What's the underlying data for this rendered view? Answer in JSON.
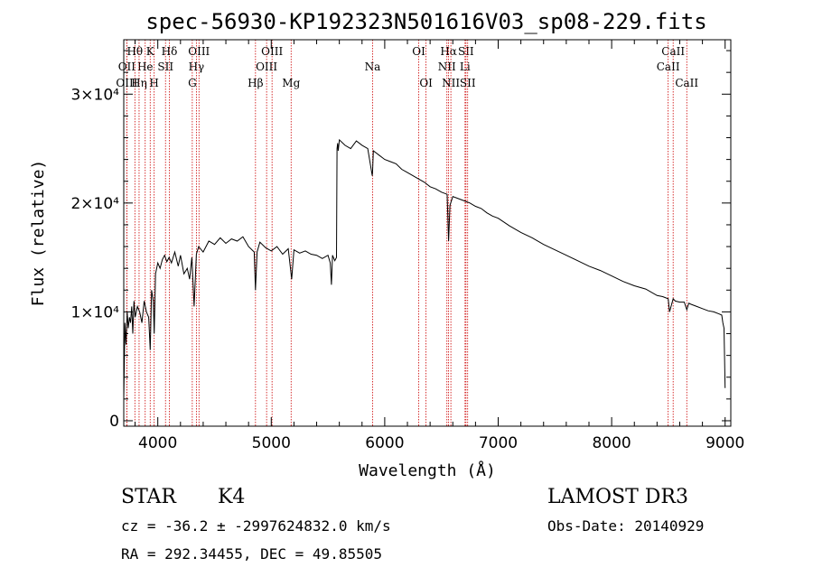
{
  "chart_data": {
    "type": "line",
    "title": "spec-56930-KP192323N501616V03_sp08-229.fits",
    "xlabel": "Wavelength (Å)",
    "ylabel": "Flux (relative)",
    "xlim": [
      3700,
      9050
    ],
    "ylim": [
      -500,
      35000
    ],
    "xticks": [
      {
        "value": 4000,
        "label": "4000"
      },
      {
        "value": 5000,
        "label": "5000"
      },
      {
        "value": 6000,
        "label": "6000"
      },
      {
        "value": 7000,
        "label": "7000"
      },
      {
        "value": 8000,
        "label": "8000"
      },
      {
        "value": 9000,
        "label": "9000"
      }
    ],
    "yticks": [
      {
        "value": 0,
        "label": "0"
      },
      {
        "value": 10000,
        "label": "1×10⁴"
      },
      {
        "value": 20000,
        "label": "2×10⁴"
      },
      {
        "value": 30000,
        "label": "3×10⁴"
      }
    ],
    "series": [
      {
        "name": "spectrum",
        "x": [
          3700,
          3710,
          3720,
          3730,
          3740,
          3750,
          3760,
          3770,
          3780,
          3790,
          3800,
          3820,
          3840,
          3860,
          3880,
          3900,
          3920,
          3933,
          3945,
          3960,
          3968,
          3980,
          4000,
          4020,
          4040,
          4060,
          4080,
          4100,
          4120,
          4150,
          4180,
          4200,
          4230,
          4260,
          4280,
          4300,
          4320,
          4340,
          4360,
          4400,
          4450,
          4500,
          4550,
          4600,
          4650,
          4700,
          4750,
          4800,
          4850,
          4861,
          4875,
          4900,
          4950,
          5000,
          5050,
          5100,
          5150,
          5180,
          5200,
          5250,
          5300,
          5350,
          5400,
          5450,
          5500,
          5520,
          5530,
          5540,
          5560,
          5575,
          5580,
          5585,
          5590,
          5600,
          5650,
          5700,
          5750,
          5800,
          5850,
          5890,
          5893,
          5900,
          5950,
          6000,
          6050,
          6100,
          6150,
          6200,
          6250,
          6300,
          6350,
          6400,
          6450,
          6500,
          6550,
          6563,
          6575,
          6600,
          6650,
          6700,
          6750,
          6800,
          6850,
          6900,
          6950,
          7000,
          7100,
          7200,
          7300,
          7400,
          7500,
          7600,
          7700,
          7800,
          7900,
          8000,
          8100,
          8200,
          8300,
          8400,
          8450,
          8498,
          8510,
          8542,
          8560,
          8600,
          8640,
          8662,
          8680,
          8700,
          8750,
          8800,
          8850,
          8900,
          8950,
          8970,
          8980,
          8990,
          9000
        ],
        "y": [
          2000,
          9000,
          7000,
          10000,
          8500,
          9500,
          9000,
          10500,
          8000,
          11000,
          9500,
          10500,
          10000,
          9000,
          11000,
          10000,
          9500,
          6500,
          12000,
          11000,
          8000,
          13500,
          14500,
          14000,
          14800,
          15200,
          14600,
          15000,
          14500,
          15500,
          14200,
          15200,
          13500,
          14000,
          13000,
          15000,
          10500,
          15300,
          16000,
          15500,
          16500,
          16200,
          16800,
          16300,
          16700,
          16500,
          16900,
          16000,
          15500,
          12000,
          15500,
          16400,
          15900,
          15600,
          16000,
          15300,
          15800,
          13000,
          15700,
          15400,
          15600,
          15300,
          15200,
          14900,
          15200,
          14500,
          12500,
          15200,
          14700,
          15000,
          25000,
          25500,
          24800,
          25800,
          25300,
          25000,
          25700,
          25300,
          25000,
          22500,
          23000,
          24800,
          24400,
          24000,
          23800,
          23600,
          23100,
          22800,
          22500,
          22200,
          21900,
          21500,
          21300,
          21000,
          20800,
          16500,
          19800,
          20600,
          20400,
          20200,
          20000,
          19700,
          19500,
          19100,
          18800,
          18600,
          17900,
          17300,
          16800,
          16200,
          15700,
          15200,
          14700,
          14200,
          13800,
          13300,
          12800,
          12400,
          12100,
          11500,
          11400,
          11200,
          10000,
          11200,
          11000,
          10900,
          10900,
          10200,
          10800,
          10700,
          10500,
          10300,
          10100,
          10000,
          9800,
          9700,
          9000,
          8500,
          3000
        ]
      }
    ],
    "lines": [
      {
        "label": "Hθ",
        "x": 3798,
        "row": 1
      },
      {
        "label": "OII",
        "x": 3727,
        "row": 2
      },
      {
        "label": "OIII",
        "x": 3727,
        "row": 3
      },
      {
        "label": "K",
        "x": 3933,
        "row": 1
      },
      {
        "label": "He",
        "x": 3889,
        "row": 2
      },
      {
        "label": "Hη",
        "x": 3835,
        "row": 3
      },
      {
        "label": "SII",
        "x": 4068,
        "row": 2
      },
      {
        "label": "H",
        "x": 3968,
        "row": 3
      },
      {
        "label": "Hδ",
        "x": 4102,
        "row": 1
      },
      {
        "label": "OIII",
        "x": 4363,
        "row": 1
      },
      {
        "label": "Hγ",
        "x": 4340,
        "row": 2
      },
      {
        "label": "G",
        "x": 4304,
        "row": 3
      },
      {
        "label": "OIII",
        "x": 5007,
        "row": 1
      },
      {
        "label": "OIII",
        "x": 4959,
        "row": 2
      },
      {
        "label": "Hβ",
        "x": 4861,
        "row": 3
      },
      {
        "label": "Mg",
        "x": 5175,
        "row": 3
      },
      {
        "label": "Na",
        "x": 5893,
        "row": 2
      },
      {
        "label": "OI",
        "x": 6300,
        "row": 1
      },
      {
        "label": "OI",
        "x": 6364,
        "row": 3
      },
      {
        "label": "Hα",
        "x": 6563,
        "row": 1
      },
      {
        "label": "SII",
        "x": 6716,
        "row": 1
      },
      {
        "label": "NII",
        "x": 6548,
        "row": 2
      },
      {
        "label": "Li",
        "x": 6708,
        "row": 2
      },
      {
        "label": "NII",
        "x": 6583,
        "row": 3
      },
      {
        "label": "SII",
        "x": 6731,
        "row": 3
      },
      {
        "label": "CaII",
        "x": 8542,
        "row": 1
      },
      {
        "label": "CaII",
        "x": 8498,
        "row": 2
      },
      {
        "label": "CaII",
        "x": 8662,
        "row": 3
      }
    ]
  },
  "info": {
    "object_class": "STAR",
    "subclass": "K4",
    "survey": "LAMOST DR3",
    "cz_line": "cz = -36.2 ± -2997624832.0 km/s",
    "obs_date": "Obs-Date: 20140929",
    "coords": "RA = 292.34455, DEC =  49.85505"
  },
  "colors": {
    "axis": "#000000",
    "spectrum": "#000000",
    "lines": "#cc0000"
  }
}
